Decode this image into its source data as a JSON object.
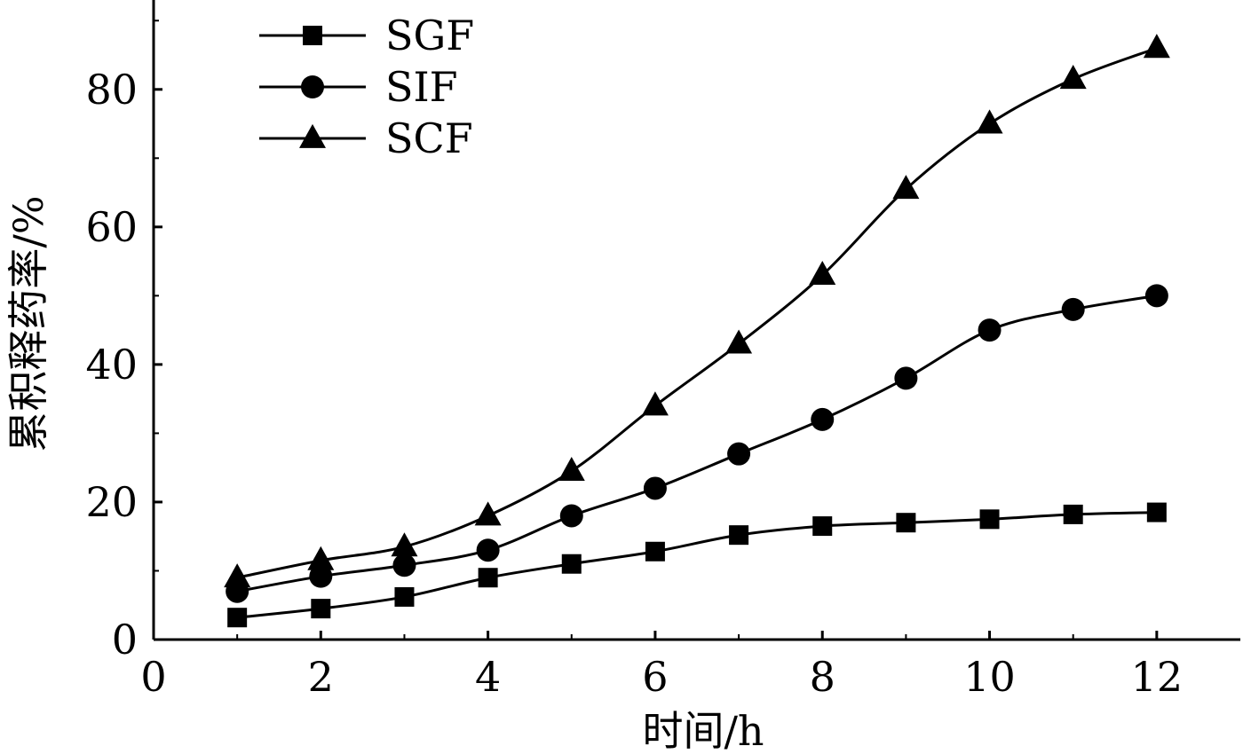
{
  "chart_data": {
    "type": "line",
    "xlabel": "时间/h",
    "ylabel": "累积释药率/%",
    "x": [
      1,
      2,
      3,
      4,
      5,
      6,
      7,
      8,
      9,
      10,
      11,
      12
    ],
    "xlim": [
      0,
      13
    ],
    "ylim": [
      0,
      93
    ],
    "xticks": [
      0,
      2,
      4,
      6,
      8,
      10,
      12
    ],
    "yticks": [
      0,
      20,
      40,
      60,
      80
    ],
    "xtick_labels": [
      "0",
      "2",
      "4",
      "6",
      "8",
      "10",
      "12"
    ],
    "ytick_labels": [
      "0",
      "20",
      "40",
      "60",
      "80"
    ],
    "grid": false,
    "legend_position": "top-left",
    "series": [
      {
        "name": "SGF",
        "marker": "square",
        "values": [
          3.2,
          4.5,
          6.2,
          9.0,
          11.0,
          12.8,
          15.2,
          16.5,
          17.0,
          17.5,
          18.2,
          18.5
        ]
      },
      {
        "name": "SIF",
        "marker": "circle",
        "values": [
          7.0,
          9.2,
          10.8,
          13.0,
          18.0,
          22.0,
          27.0,
          32.0,
          38.0,
          45.0,
          48.0,
          50.0
        ]
      },
      {
        "name": "SCF",
        "marker": "triangle",
        "values": [
          9.0,
          11.5,
          13.5,
          18.0,
          24.5,
          34.0,
          43.0,
          53.0,
          65.5,
          75.0,
          81.5,
          86.0
        ]
      }
    ],
    "colors": {
      "line": "#000000",
      "marker": "#000000",
      "axis": "#000000"
    }
  }
}
